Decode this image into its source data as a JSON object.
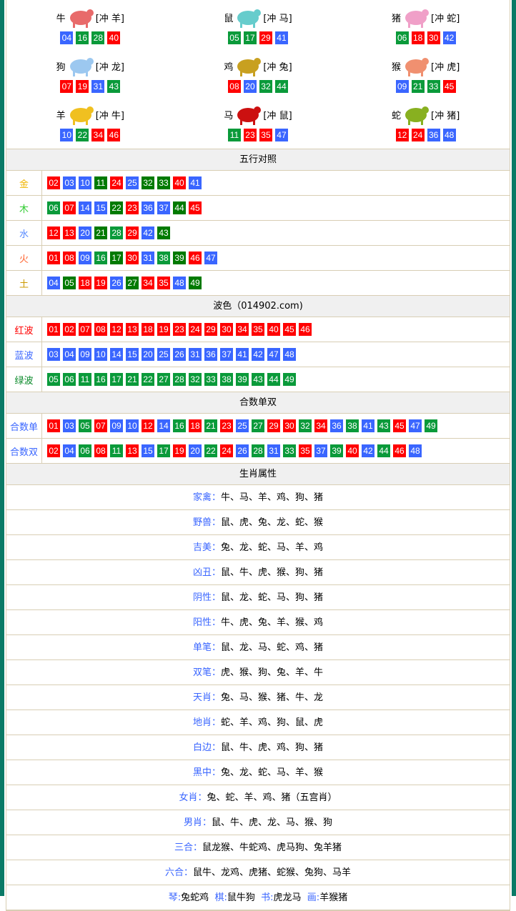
{
  "colors": {
    "red": "#ff0000",
    "blue": "#3a66ff",
    "green": "#0a9a3a",
    "dark_green": "#007a00",
    "border": "#0a7a66"
  },
  "zodiac": [
    {
      "name": "牛",
      "clash": "[冲 羊]",
      "image": "ox",
      "img_color": "#e86a6a",
      "numbers": [
        "04",
        "16",
        "28",
        "40"
      ]
    },
    {
      "name": "鼠",
      "clash": "[冲 马]",
      "image": "rat",
      "img_color": "#66cccc",
      "numbers": [
        "05",
        "17",
        "29",
        "41"
      ]
    },
    {
      "name": "猪",
      "clash": "[冲 蛇]",
      "image": "pig",
      "img_color": "#f0a0c8",
      "numbers": [
        "06",
        "18",
        "30",
        "42"
      ]
    },
    {
      "name": "狗",
      "clash": "[冲 龙]",
      "image": "dog",
      "img_color": "#9cc8f0",
      "numbers": [
        "07",
        "19",
        "31",
        "43"
      ]
    },
    {
      "name": "鸡",
      "clash": "[冲 兔]",
      "image": "rooster",
      "img_color": "#c8a020",
      "numbers": [
        "08",
        "20",
        "32",
        "44"
      ]
    },
    {
      "name": "猴",
      "clash": "[冲 虎]",
      "image": "monkey",
      "img_color": "#f09070",
      "numbers": [
        "09",
        "21",
        "33",
        "45"
      ]
    },
    {
      "name": "羊",
      "clash": "[冲 牛]",
      "image": "goat",
      "img_color": "#f0c020",
      "numbers": [
        "10",
        "22",
        "34",
        "46"
      ]
    },
    {
      "name": "马",
      "clash": "[冲 鼠]",
      "image": "horse",
      "img_color": "#cc1010",
      "numbers": [
        "11",
        "23",
        "35",
        "47"
      ]
    },
    {
      "name": "蛇",
      "clash": "[冲 猪]",
      "image": "snake",
      "img_color": "#88b020",
      "numbers": [
        "12",
        "24",
        "36",
        "48"
      ]
    }
  ],
  "wuxing": {
    "title": "五行对照",
    "dark_green": [
      "11",
      "32",
      "33",
      "22",
      "44",
      "21",
      "43",
      "17",
      "39",
      "05",
      "27",
      "49"
    ],
    "rows": [
      {
        "label": "金",
        "color": "#f0b400",
        "numbers": [
          "02",
          "03",
          "10",
          "11",
          "24",
          "25",
          "32",
          "33",
          "40",
          "41"
        ]
      },
      {
        "label": "木",
        "color": "#33cc33",
        "numbers": [
          "06",
          "07",
          "14",
          "15",
          "22",
          "23",
          "36",
          "37",
          "44",
          "45"
        ]
      },
      {
        "label": "水",
        "color": "#5588ff",
        "numbers": [
          "12",
          "13",
          "20",
          "21",
          "28",
          "29",
          "42",
          "43"
        ]
      },
      {
        "label": "火",
        "color": "#ff6633",
        "numbers": [
          "01",
          "08",
          "09",
          "16",
          "17",
          "30",
          "31",
          "38",
          "39",
          "46",
          "47"
        ]
      },
      {
        "label": "土",
        "color": "#cc9900",
        "numbers": [
          "04",
          "05",
          "18",
          "19",
          "26",
          "27",
          "34",
          "35",
          "48",
          "49"
        ]
      }
    ]
  },
  "bose": {
    "title": "波色（014902.com)",
    "rows": [
      {
        "label": "红波",
        "color": "#ff0000",
        "numbers": [
          "01",
          "02",
          "07",
          "08",
          "12",
          "13",
          "18",
          "19",
          "23",
          "24",
          "29",
          "30",
          "34",
          "35",
          "40",
          "45",
          "46"
        ]
      },
      {
        "label": "蓝波",
        "color": "#3a66ff",
        "numbers": [
          "03",
          "04",
          "09",
          "10",
          "14",
          "15",
          "20",
          "25",
          "26",
          "31",
          "36",
          "37",
          "41",
          "42",
          "47",
          "48"
        ]
      },
      {
        "label": "绿波",
        "color": "#0a8a2a",
        "numbers": [
          "05",
          "06",
          "11",
          "16",
          "17",
          "21",
          "22",
          "27",
          "28",
          "32",
          "33",
          "38",
          "39",
          "43",
          "44",
          "49"
        ]
      }
    ]
  },
  "heshu": {
    "title": "合数单双",
    "rows": [
      {
        "label": "合数单",
        "color": "#3a66ff",
        "numbers": [
          "01",
          "03",
          "05",
          "07",
          "09",
          "10",
          "12",
          "14",
          "16",
          "18",
          "21",
          "23",
          "25",
          "27",
          "29",
          "30",
          "32",
          "34",
          "36",
          "38",
          "41",
          "43",
          "45",
          "47",
          "49"
        ]
      },
      {
        "label": "合数双",
        "color": "#3a66ff",
        "numbers": [
          "02",
          "04",
          "06",
          "08",
          "11",
          "13",
          "15",
          "17",
          "19",
          "20",
          "22",
          "24",
          "26",
          "28",
          "31",
          "33",
          "35",
          "37",
          "39",
          "40",
          "42",
          "44",
          "46",
          "48"
        ]
      }
    ]
  },
  "shengxiao": {
    "title": "生肖属性",
    "rows": [
      {
        "k": "家禽：",
        "v": "牛、马、羊、鸡、狗、猪"
      },
      {
        "k": "野兽：",
        "v": "鼠、虎、兔、龙、蛇、猴"
      },
      {
        "k": "吉美：",
        "v": "兔、龙、蛇、马、羊、鸡"
      },
      {
        "k": "凶丑：",
        "v": "鼠、牛、虎、猴、狗、猪"
      },
      {
        "k": "阴性：",
        "v": "鼠、龙、蛇、马、狗、猪"
      },
      {
        "k": "阳性：",
        "v": "牛、虎、兔、羊、猴、鸡"
      },
      {
        "k": "单笔：",
        "v": "鼠、龙、马、蛇、鸡、猪"
      },
      {
        "k": "双笔：",
        "v": "虎、猴、狗、兔、羊、牛"
      },
      {
        "k": "天肖：",
        "v": "兔、马、猴、猪、牛、龙"
      },
      {
        "k": "地肖：",
        "v": "蛇、羊、鸡、狗、鼠、虎"
      },
      {
        "k": "白边：",
        "v": "鼠、牛、虎、鸡、狗、猪"
      },
      {
        "k": "黑中：",
        "v": "兔、龙、蛇、马、羊、猴"
      },
      {
        "k": "女肖：",
        "v": "兔、蛇、羊、鸡、猪（五宫肖）"
      },
      {
        "k": "男肖：",
        "v": "鼠、牛、虎、龙、马、猴、狗"
      },
      {
        "k": "三合：",
        "v": "鼠龙猴、牛蛇鸡、虎马狗、兔羊猪"
      },
      {
        "k": "六合：",
        "v": "鼠牛、龙鸡、虎猪、蛇猴、兔狗、马羊"
      }
    ],
    "last": [
      {
        "k": "琴:",
        "v": "兔蛇鸡"
      },
      {
        "k": "棋:",
        "v": "鼠牛狗"
      },
      {
        "k": "书:",
        "v": "虎龙马"
      },
      {
        "k": "画:",
        "v": "羊猴猪"
      }
    ]
  }
}
